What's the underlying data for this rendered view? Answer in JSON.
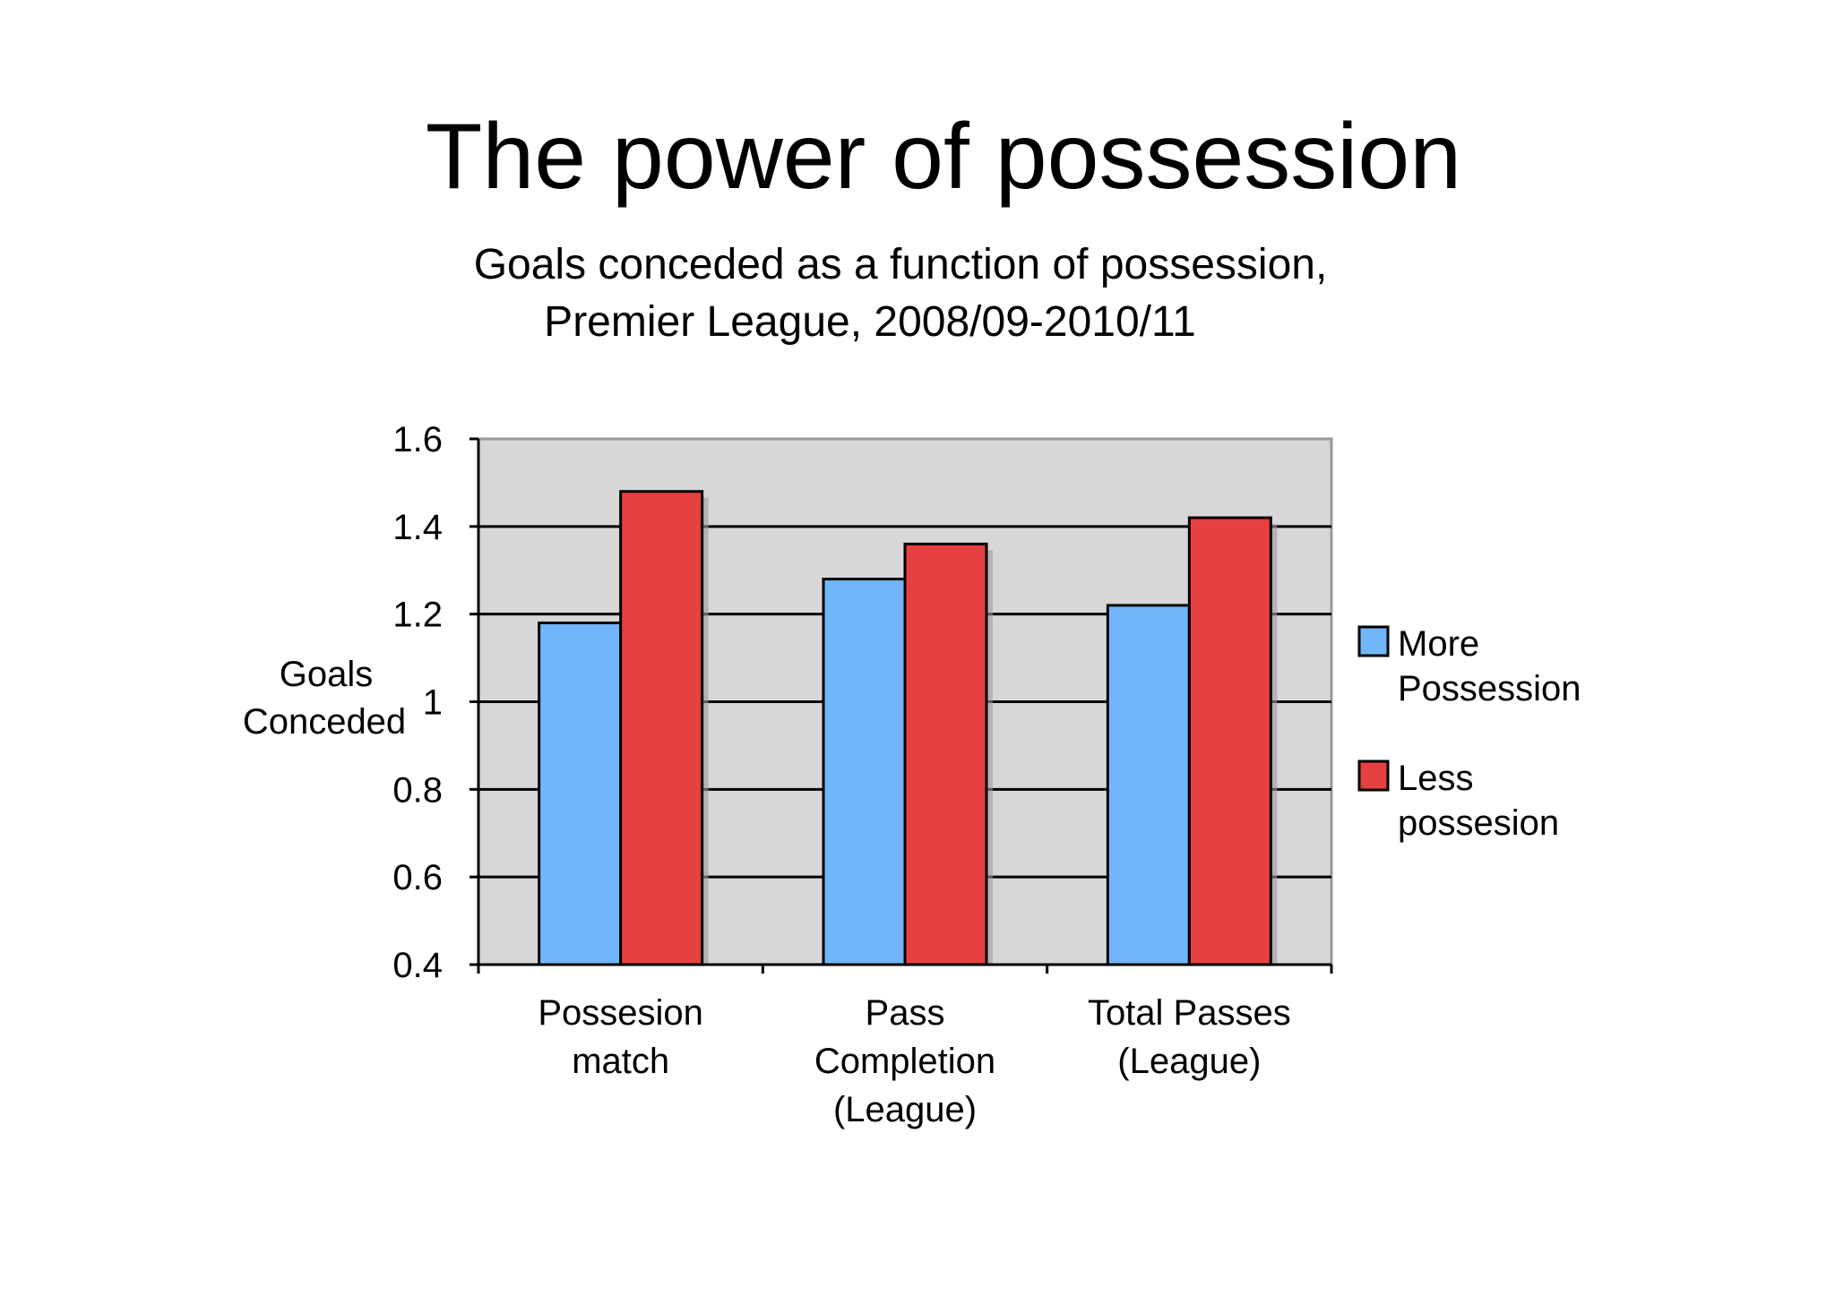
{
  "chart_data": {
    "type": "bar",
    "title": "The power of possession",
    "subtitle": [
      "Goals conceded as a function of possession,",
      "Premier League, 2008/09-2010/11"
    ],
    "ylabel": [
      "Goals",
      "Conceded"
    ],
    "xlabel": "",
    "ylim": [
      0.4,
      1.6
    ],
    "yticks": [
      "1.6",
      "1.4",
      "1.2",
      "1",
      "0.8",
      "0.6",
      "0.4"
    ],
    "ytick_values": [
      1.6,
      1.4,
      1.2,
      1.0,
      0.8,
      0.6,
      0.4
    ],
    "categories": [
      [
        "Possesion",
        "match"
      ],
      [
        "Pass",
        "Completion",
        "(League)"
      ],
      [
        "Total Passes",
        "(League)"
      ]
    ],
    "series": [
      {
        "name": [
          "More",
          "Possession"
        ],
        "color": "#72b6fa",
        "values": [
          1.18,
          1.28,
          1.22
        ]
      },
      {
        "name": [
          "Less",
          "possesion"
        ],
        "color": "#e54042",
        "values": [
          1.48,
          1.36,
          1.42
        ]
      }
    ],
    "grid": true,
    "legend_position": "right",
    "plot_background": "#d8d6d7"
  }
}
